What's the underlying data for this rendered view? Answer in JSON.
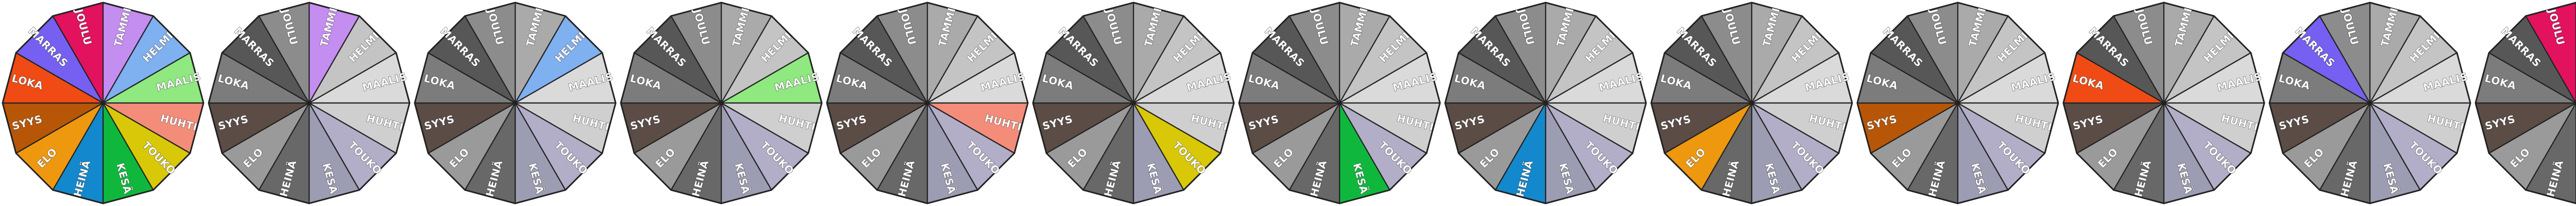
{
  "strip": {
    "wheel_count": 13,
    "first_wheel_kind": "all-colored",
    "month_labels": [
      "TAMMI",
      "HELMI",
      "MAALIS",
      "HUHTI",
      "TOUKO",
      "KESÄ",
      "HEINÄ",
      "ELO",
      "SYYS",
      "LOKA",
      "MARRAS",
      "JOULU"
    ],
    "colors": {
      "TAMMI": "#c48df0",
      "HELMI": "#7fb0f0",
      "MAALIS": "#8fe880",
      "HUHTI": "#f48c7a",
      "TOUKO": "#d8c808",
      "KESÄ": "#0fb83c",
      "HEINÄ": "#1488cc",
      "ELO": "#ee9810",
      "SYYS": "#b85608",
      "LOKA": "#f04b14",
      "MARRAS": "#7560f2",
      "JOULU": "#e2125e"
    },
    "gray_palette": {
      "TAMMI": "#aaaaaa",
      "HELMI": "#c4c4c4",
      "MAALIS": "#dadada",
      "HUHTI": "#cfcfcf",
      "TOUKO": "#b2aec8",
      "KESÄ": "#9c9cb2",
      "HEINÄ": "#686868",
      "ELO": "#9a9a9a",
      "SYYS": "#5b4c46",
      "LOKA": "#7c7c7c",
      "MARRAS": "#575757",
      "JOULU": "#8c8c8c"
    },
    "frame_color": "#222222",
    "highlight_sequence": [
      "TAMMI",
      "HELMI",
      "MAALIS",
      "HUHTI",
      "TOUKO",
      "KESÄ",
      "HEINÄ",
      "ELO",
      "SYYS",
      "LOKA",
      "MARRAS",
      "JOULU"
    ]
  }
}
